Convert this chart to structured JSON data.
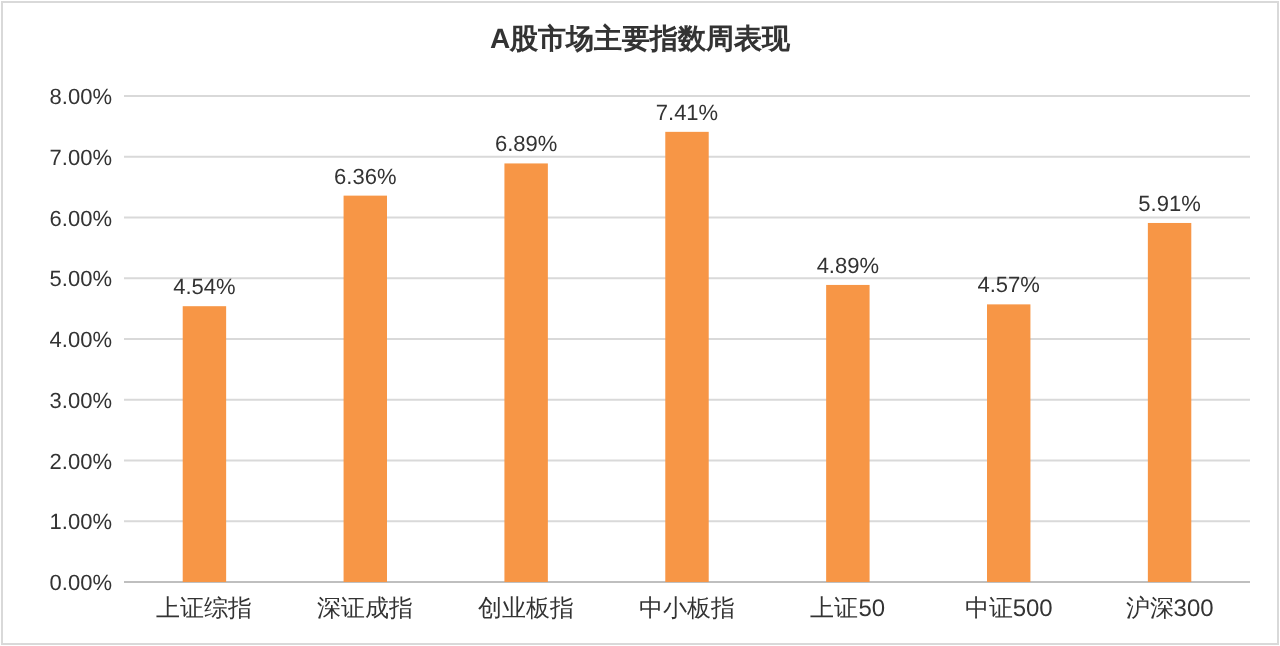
{
  "chart_data": {
    "type": "bar",
    "title": "A股市场主要指数周表现",
    "categories": [
      "上证综指",
      "深证成指",
      "创业板指",
      "中小板指",
      "上证50",
      "中证500",
      "沪深300"
    ],
    "values": [
      4.54,
      6.36,
      6.89,
      7.41,
      4.89,
      4.57,
      5.91
    ],
    "value_labels": [
      "4.54%",
      "6.36%",
      "6.89%",
      "7.41%",
      "4.89%",
      "4.57%",
      "5.91%"
    ],
    "color": "#f79646",
    "ylim": [
      0,
      8
    ],
    "yticks": [
      {
        "value": 0,
        "label": "0.00%"
      },
      {
        "value": 1,
        "label": "1.00%"
      },
      {
        "value": 2,
        "label": "2.00%"
      },
      {
        "value": 3,
        "label": "3.00%"
      },
      {
        "value": 4,
        "label": "4.00%"
      },
      {
        "value": 5,
        "label": "5.00%"
      },
      {
        "value": 6,
        "label": "6.00%"
      },
      {
        "value": 7,
        "label": "7.00%"
      },
      {
        "value": 8,
        "label": "8.00%"
      }
    ],
    "grid": "y"
  }
}
